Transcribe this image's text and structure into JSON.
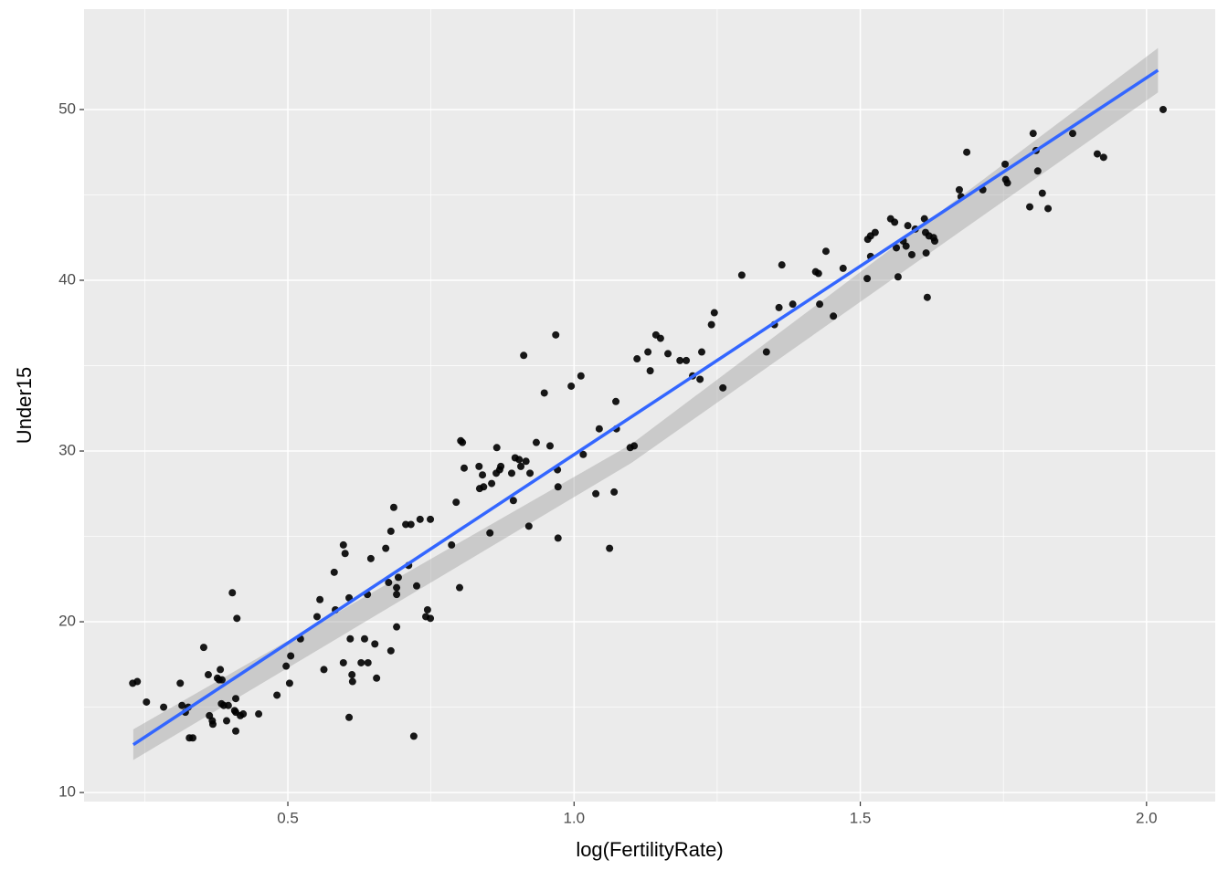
{
  "chart_data": {
    "type": "scatter",
    "x_label": "log(FertilityRate)",
    "y_label": "Under15",
    "xlim": [
      0.144,
      2.12
    ],
    "ylim": [
      9.47,
      55.88
    ],
    "xticks": [
      0.5,
      {
        "value": 1,
        "label": "1.0"
      },
      1.5,
      {
        "value": 2,
        "label": "2.0"
      }
    ],
    "yticks": [
      10,
      20,
      30,
      40,
      50
    ],
    "xminor": [
      0.25,
      0.75,
      1.25,
      1.75
    ],
    "yminor": [
      15,
      25,
      35,
      45
    ],
    "grid": true,
    "point_color": "#000000",
    "smooth": {
      "color": "#3366FF",
      "x": [
        0.23,
        2.02
      ],
      "y": [
        12.8,
        52.3
      ]
    },
    "band": {
      "color": "#999999",
      "x": [
        0.23,
        1.1,
        2.02
      ],
      "lower": [
        11.9,
        29.3,
        51.0
      ],
      "upper": [
        13.7,
        30.4,
        53.6
      ]
    },
    "series": [
      {
        "name": "points",
        "x": [
          0.229,
          0.237,
          0.253,
          0.283,
          0.312,
          0.315,
          0.321,
          0.326,
          0.328,
          0.334,
          0.353,
          0.361,
          0.363,
          0.368,
          0.369,
          0.377,
          0.38,
          0.382,
          0.384,
          0.385,
          0.388,
          0.393,
          0.396,
          0.403,
          0.407,
          0.409,
          0.409,
          0.409,
          0.411,
          0.417,
          0.422,
          0.449,
          0.481,
          0.497,
          0.503,
          0.505,
          0.522,
          0.551,
          0.556,
          0.563,
          0.581,
          0.583,
          0.597,
          0.597,
          0.6,
          0.607,
          0.607,
          0.609,
          0.612,
          0.613,
          0.628,
          0.634,
          0.639,
          0.64,
          0.645,
          0.652,
          0.655,
          0.671,
          0.676,
          0.68,
          0.68,
          0.685,
          0.69,
          0.69,
          0.69,
          0.693,
          0.706,
          0.711,
          0.715,
          0.72,
          0.725,
          0.731,
          0.741,
          0.744,
          0.749,
          0.749,
          0.786,
          0.794,
          0.8,
          0.802,
          0.805,
          0.808,
          0.834,
          0.835,
          0.84,
          0.842,
          0.853,
          0.856,
          0.864,
          0.865,
          0.87,
          0.872,
          0.891,
          0.894,
          0.897,
          0.904,
          0.907,
          0.912,
          0.916,
          0.921,
          0.923,
          0.934,
          0.948,
          0.958,
          0.968,
          0.971,
          0.972,
          0.972,
          0.995,
          1.012,
          1.016,
          1.038,
          1.044,
          1.062,
          1.07,
          1.073,
          1.074,
          1.098,
          1.105,
          1.11,
          1.129,
          1.133,
          1.143,
          1.151,
          1.164,
          1.185,
          1.196,
          1.207,
          1.22,
          1.223,
          1.24,
          1.245,
          1.26,
          1.293,
          1.336,
          1.35,
          1.358,
          1.363,
          1.382,
          1.422,
          1.427,
          1.429,
          1.44,
          1.453,
          1.47,
          1.512,
          1.513,
          1.518,
          1.518,
          1.526,
          1.553,
          1.56,
          1.563,
          1.566,
          1.575,
          1.58,
          1.583,
          1.59,
          1.596,
          1.612,
          1.614,
          1.615,
          1.617,
          1.62,
          1.628,
          1.63,
          1.673,
          1.676,
          1.686,
          1.714,
          1.753,
          1.754,
          1.757,
          1.796,
          1.802,
          1.807,
          1.81,
          1.818,
          1.828,
          1.871,
          1.914,
          1.925,
          2.029
        ],
        "values": [
          16.4,
          16.5,
          15.3,
          15.0,
          16.4,
          15.1,
          14.7,
          15.0,
          13.2,
          13.2,
          18.5,
          16.9,
          14.5,
          14.2,
          14.0,
          16.7,
          16.6,
          17.2,
          15.2,
          16.6,
          15.1,
          14.2,
          15.1,
          21.7,
          14.8,
          15.5,
          14.7,
          13.6,
          20.2,
          14.5,
          14.6,
          14.6,
          15.7,
          17.4,
          16.4,
          18.0,
          19.0,
          20.3,
          21.3,
          17.2,
          22.9,
          20.7,
          17.6,
          24.5,
          24.0,
          21.4,
          14.4,
          19.0,
          16.9,
          16.5,
          17.6,
          19.0,
          21.6,
          17.6,
          23.7,
          18.7,
          16.7,
          24.3,
          22.3,
          18.3,
          25.3,
          26.7,
          22.0,
          21.6,
          19.7,
          22.6,
          25.7,
          23.3,
          25.7,
          13.3,
          22.1,
          26.0,
          20.3,
          20.7,
          20.2,
          26.0,
          24.5,
          27.0,
          22.0,
          30.6,
          30.5,
          29.0,
          29.1,
          27.8,
          28.6,
          27.9,
          25.2,
          28.1,
          28.7,
          30.2,
          28.9,
          29.1,
          28.7,
          27.1,
          29.6,
          29.5,
          29.1,
          35.6,
          29.4,
          25.6,
          28.7,
          30.5,
          33.4,
          30.3,
          36.8,
          28.9,
          27.9,
          24.9,
          33.8,
          34.4,
          29.8,
          27.5,
          31.3,
          24.3,
          27.6,
          32.9,
          31.3,
          30.2,
          30.3,
          35.4,
          35.8,
          34.7,
          36.8,
          36.6,
          35.7,
          35.3,
          35.3,
          34.4,
          34.2,
          35.8,
          37.4,
          38.1,
          33.7,
          40.3,
          35.8,
          37.4,
          38.4,
          40.9,
          38.6,
          40.5,
          40.4,
          38.6,
          41.7,
          37.9,
          40.7,
          40.1,
          42.4,
          42.6,
          41.4,
          42.8,
          43.6,
          43.4,
          41.9,
          40.2,
          42.3,
          42.0,
          43.2,
          41.5,
          43.0,
          43.6,
          42.8,
          41.6,
          39.0,
          42.6,
          42.5,
          42.3,
          45.3,
          44.9,
          47.5,
          45.3,
          46.8,
          45.9,
          45.7,
          44.3,
          48.6,
          47.6,
          46.4,
          45.1,
          44.2,
          48.6,
          47.4,
          47.2,
          50.0
        ]
      }
    ]
  }
}
